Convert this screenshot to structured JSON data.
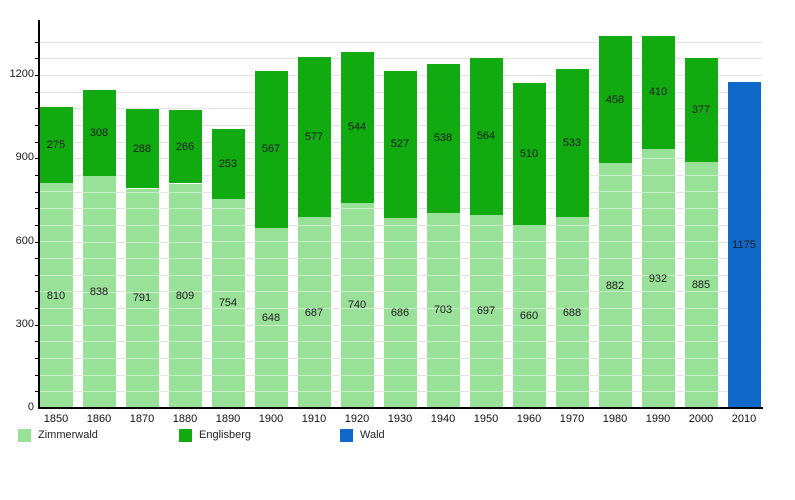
{
  "chart_data": {
    "type": "bar",
    "stacked": true,
    "title": "",
    "xlabel": "",
    "ylabel": "",
    "categories": [
      "1850",
      "1860",
      "1870",
      "1880",
      "1890",
      "1900",
      "1910",
      "1920",
      "1930",
      "1940",
      "1950",
      "1960",
      "1970",
      "1980",
      "1990",
      "2000",
      "2010"
    ],
    "series": [
      {
        "name": "Zimmerwald",
        "color": "#99e099",
        "values": [
          810,
          838,
          791,
          809,
          754,
          648,
          687,
          740,
          686,
          703,
          697,
          660,
          688,
          882,
          932,
          885,
          0
        ]
      },
      {
        "name": "Englisberg",
        "color": "#11aa11",
        "values": [
          275,
          308,
          288,
          266,
          253,
          567,
          577,
          544,
          527,
          538,
          564,
          510,
          533,
          458,
          410,
          377,
          0
        ]
      },
      {
        "name": "Wald",
        "color": "#1068c8",
        "values": [
          0,
          0,
          0,
          0,
          0,
          0,
          0,
          0,
          0,
          0,
          0,
          0,
          0,
          0,
          0,
          0,
          1175
        ]
      }
    ],
    "ylim": [
      0,
      1400
    ],
    "yticks": [
      0,
      300,
      600,
      900,
      1200
    ],
    "minor_grid_step": 60,
    "grid": true,
    "legend_position": "bottom",
    "show_value_labels": true,
    "value_label_placement": "segment-center",
    "colors": {
      "background": "#ffffff",
      "gridline": "#e4e4e4",
      "axis": "#000000",
      "text": "#1a1a1a"
    }
  }
}
